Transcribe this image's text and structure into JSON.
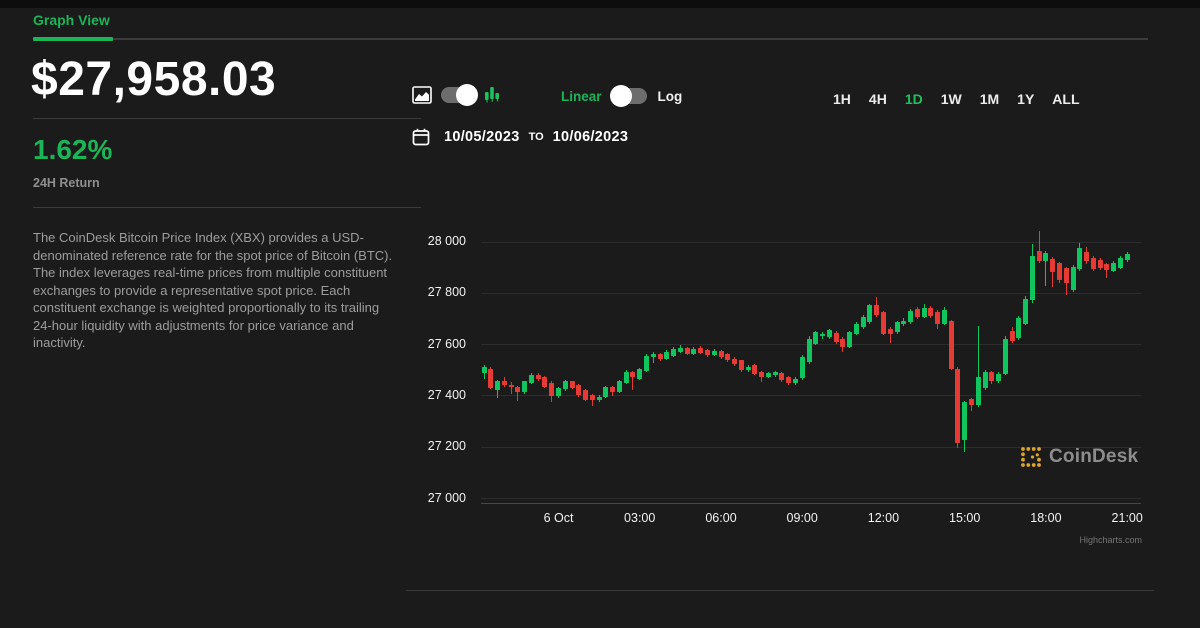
{
  "tab": {
    "label": "Graph View"
  },
  "price_panel": {
    "price": "$27,958.03",
    "change": "1.62%",
    "change_label": "24H Return",
    "description": "The CoinDesk Bitcoin Price Index (XBX) provides a USD-denominated reference rate for the spot price of Bitcoin (BTC). The index leverages real-time prices from multiple constituent exchanges to provide a representative spot price. Each constituent exchange is weighted proportionally to its trailing 24-hour liquidity with adjustments for price variance and inactivity."
  },
  "controls": {
    "chart_type_toggle": {
      "state": "candlestick"
    },
    "scale_toggle": {
      "linear_label": "Linear",
      "log_label": "Log",
      "selected": "Linear"
    },
    "date_from": "10/05/2023",
    "date_to_word": "TO",
    "date_to": "10/06/2023",
    "ranges": [
      "1H",
      "4H",
      "1D",
      "1W",
      "1M",
      "1Y",
      "ALL"
    ],
    "active_range": "1D"
  },
  "watermark": {
    "text": "CoinDesk"
  },
  "credits": "Highcharts.com",
  "colors": {
    "accent_green": "#1bb558",
    "candle_up": "#10c45e",
    "candle_down": "#e63b34",
    "background": "#1b1b1b"
  },
  "chart_data": {
    "type": "candlestick",
    "title": "CoinDesk Bitcoin Price Index (XBX), USD",
    "start": "10/05/2023 21:15",
    "interval_minutes": 15,
    "ylim": [
      27000,
      28080
    ],
    "grid": true,
    "yticks": [
      {
        "value": 28000,
        "label": "28 000"
      },
      {
        "value": 27800,
        "label": "27 800"
      },
      {
        "value": 27600,
        "label": "27 600"
      },
      {
        "value": 27400,
        "label": "27 400"
      },
      {
        "value": 27200,
        "label": "27 200"
      },
      {
        "value": 27000,
        "label": "27 000"
      }
    ],
    "xticks": [
      {
        "index": 11,
        "label": "6 Oct"
      },
      {
        "index": 23,
        "label": "03:00"
      },
      {
        "index": 35,
        "label": "06:00"
      },
      {
        "index": 47,
        "label": "09:00"
      },
      {
        "index": 59,
        "label": "12:00"
      },
      {
        "index": 71,
        "label": "15:00"
      },
      {
        "index": 83,
        "label": "18:00"
      },
      {
        "index": 95,
        "label": "21:00"
      }
    ],
    "candles": [
      [
        "21:15",
        27486,
        27518,
        27465,
        27512
      ],
      [
        "21:30",
        27505,
        27512,
        27425,
        27430
      ],
      [
        "21:45",
        27422,
        27462,
        27390,
        27458
      ],
      [
        "22:00",
        27458,
        27470,
        27432,
        27440
      ],
      [
        "22:15",
        27440,
        27452,
        27405,
        27432
      ],
      [
        "22:30",
        27432,
        27438,
        27378,
        27412
      ],
      [
        "22:45",
        27412,
        27458,
        27405,
        27455
      ],
      [
        "23:00",
        27450,
        27486,
        27445,
        27481
      ],
      [
        "23:15",
        27481,
        27488,
        27455,
        27462
      ],
      [
        "23:30",
        27470,
        27476,
        27428,
        27433
      ],
      [
        "23:45",
        27448,
        27455,
        27373,
        27396
      ],
      [
        "00:00",
        27396,
        27432,
        27390,
        27428
      ],
      [
        "00:15",
        27423,
        27460,
        27418,
        27455
      ],
      [
        "00:30",
        27455,
        27458,
        27424,
        27430
      ],
      [
        "00:45",
        27440,
        27444,
        27395,
        27400
      ],
      [
        "01:00",
        27420,
        27424,
        27376,
        27381
      ],
      [
        "01:15",
        27400,
        27405,
        27360,
        27380
      ],
      [
        "01:30",
        27380,
        27400,
        27374,
        27395
      ],
      [
        "01:45",
        27395,
        27436,
        27390,
        27432
      ],
      [
        "02:00",
        27432,
        27436,
        27398,
        27415
      ],
      [
        "02:15",
        27415,
        27460,
        27410,
        27455
      ],
      [
        "02:30",
        27448,
        27498,
        27443,
        27493
      ],
      [
        "02:45",
        27493,
        27497,
        27420,
        27470
      ],
      [
        "03:00",
        27463,
        27508,
        27458,
        27502
      ],
      [
        "03:15",
        27496,
        27560,
        27490,
        27554
      ],
      [
        "03:30",
        27548,
        27568,
        27525,
        27562
      ],
      [
        "03:45",
        27562,
        27565,
        27533,
        27540
      ],
      [
        "04:00",
        27540,
        27578,
        27536,
        27570
      ],
      [
        "04:15",
        27552,
        27588,
        27548,
        27581
      ],
      [
        "04:30",
        27570,
        27595,
        27565,
        27585
      ],
      [
        "04:45",
        27585,
        27590,
        27556,
        27562
      ],
      [
        "05:00",
        27562,
        27590,
        27557,
        27580
      ],
      [
        "05:15",
        27585,
        27592,
        27560,
        27565
      ],
      [
        "05:30",
        27578,
        27582,
        27550,
        27558
      ],
      [
        "05:45",
        27558,
        27580,
        27552,
        27572
      ],
      [
        "06:00",
        27572,
        27576,
        27543,
        27550
      ],
      [
        "06:15",
        27560,
        27565,
        27530,
        27537
      ],
      [
        "06:30",
        27544,
        27548,
        27516,
        27524
      ],
      [
        "06:45",
        27537,
        27540,
        27490,
        27498
      ],
      [
        "07:00",
        27498,
        27518,
        27492,
        27512
      ],
      [
        "07:15",
        27518,
        27522,
        27478,
        27485
      ],
      [
        "07:30",
        27493,
        27497,
        27452,
        27472
      ],
      [
        "07:45",
        27472,
        27492,
        27466,
        27486
      ],
      [
        "08:00",
        27478,
        27497,
        27470,
        27490
      ],
      [
        "08:15",
        27486,
        27490,
        27453,
        27460
      ],
      [
        "08:30",
        27470,
        27474,
        27440,
        27448
      ],
      [
        "08:45",
        27448,
        27472,
        27440,
        27466
      ],
      [
        "09:00",
        27466,
        27556,
        27460,
        27550
      ],
      [
        "09:15",
        27530,
        27630,
        27524,
        27622
      ],
      [
        "09:30",
        27602,
        27652,
        27596,
        27647
      ],
      [
        "09:45",
        27630,
        27648,
        27618,
        27640
      ],
      [
        "10:00",
        27628,
        27660,
        27620,
        27654
      ],
      [
        "10:15",
        27642,
        27650,
        27600,
        27608
      ],
      [
        "10:30",
        27622,
        27628,
        27570,
        27590
      ],
      [
        "10:45",
        27590,
        27652,
        27585,
        27647
      ],
      [
        "11:00",
        27641,
        27688,
        27634,
        27680
      ],
      [
        "11:15",
        27667,
        27712,
        27660,
        27705
      ],
      [
        "11:30",
        27686,
        27758,
        27680,
        27751
      ],
      [
        "11:45",
        27751,
        27783,
        27705,
        27712
      ],
      [
        "12:00",
        27725,
        27730,
        27635,
        27641
      ],
      [
        "12:15",
        27660,
        27666,
        27605,
        27640
      ],
      [
        "12:30",
        27647,
        27692,
        27640,
        27686
      ],
      [
        "12:45",
        27680,
        27700,
        27672,
        27692
      ],
      [
        "13:00",
        27685,
        27736,
        27678,
        27730
      ],
      [
        "13:15",
        27738,
        27744,
        27698,
        27705
      ],
      [
        "13:30",
        27705,
        27755,
        27700,
        27742
      ],
      [
        "13:45",
        27742,
        27748,
        27702,
        27710
      ],
      [
        "14:00",
        27726,
        27732,
        27660,
        27680
      ],
      [
        "14:15",
        27680,
        27745,
        27674,
        27735
      ],
      [
        "14:30",
        27690,
        27695,
        27498,
        27505
      ],
      [
        "14:45",
        27505,
        27512,
        27195,
        27215
      ],
      [
        "15:00",
        27225,
        27380,
        27178,
        27373
      ],
      [
        "15:15",
        27385,
        27392,
        27340,
        27362
      ],
      [
        "15:30",
        27362,
        27672,
        27355,
        27470
      ],
      [
        "15:45",
        27430,
        27498,
        27422,
        27490
      ],
      [
        "16:00",
        27490,
        27495,
        27445,
        27455
      ],
      [
        "16:15",
        27455,
        27492,
        27448,
        27485
      ],
      [
        "16:30",
        27485,
        27630,
        27478,
        27620
      ],
      [
        "16:45",
        27652,
        27668,
        27605,
        27612
      ],
      [
        "17:00",
        27623,
        27710,
        27616,
        27700
      ],
      [
        "17:15",
        27680,
        27788,
        27674,
        27777
      ],
      [
        "17:30",
        27770,
        27990,
        27762,
        27944
      ],
      [
        "17:45",
        27965,
        28040,
        27915,
        27925
      ],
      [
        "18:00",
        27925,
        27962,
        27825,
        27957
      ],
      [
        "18:15",
        27932,
        27938,
        27822,
        27880
      ],
      [
        "18:30",
        27915,
        27920,
        27840,
        27850
      ],
      [
        "18:45",
        27895,
        27900,
        27790,
        27838
      ],
      [
        "19:00",
        27810,
        27908,
        27803,
        27900
      ],
      [
        "19:15",
        27893,
        27995,
        27886,
        27975
      ],
      [
        "19:30",
        27960,
        27978,
        27912,
        27925
      ],
      [
        "19:45",
        27935,
        27942,
        27885,
        27893
      ],
      [
        "20:00",
        27930,
        27936,
        27888,
        27898
      ],
      [
        "20:15",
        27913,
        27918,
        27858,
        27887
      ],
      [
        "20:30",
        27887,
        27925,
        27880,
        27918
      ],
      [
        "20:45",
        27898,
        27942,
        27892,
        27935
      ],
      [
        "21:00",
        27928,
        27958,
        27920,
        27950
      ]
    ]
  }
}
